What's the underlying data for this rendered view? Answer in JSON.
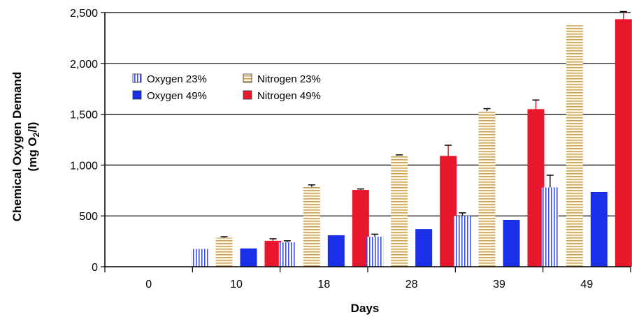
{
  "chart_data": {
    "type": "bar",
    "title": "",
    "xlabel": "Days",
    "ylabel_line1": "Chemical Oxygen Demand",
    "ylabel_line2_prefix": "(mg O",
    "ylabel_line2_sub": "2",
    "ylabel_line2_suffix": "/l)",
    "categories": [
      "0",
      "10",
      "18",
      "28",
      "39",
      "49"
    ],
    "ylim": [
      0,
      2500
    ],
    "yticks": [
      0,
      500,
      1000,
      1500,
      2000,
      2500
    ],
    "ytick_labels": [
      "0",
      "500",
      "1,000",
      "1,500",
      "2,000",
      "2,500"
    ],
    "grid": true,
    "legend_position": "top-left",
    "series": [
      {
        "name": "Oxygen 23%",
        "values": [
          0,
          175,
          240,
          295,
          500,
          780
        ],
        "errors": [
          0,
          0,
          15,
          25,
          30,
          120
        ],
        "pattern": "vertical-stripes",
        "color": "#3a4fd6",
        "stripe_bg": "#ffffff"
      },
      {
        "name": "Nitrogen 23%",
        "values": [
          0,
          285,
          785,
          1095,
          1530,
          2375
        ],
        "errors": [
          0,
          10,
          20,
          5,
          25,
          0
        ],
        "pattern": "horizontal-stripes",
        "color": "#c9a15a",
        "stripe_bg": "#fff8e6"
      },
      {
        "name": "Oxygen 49%",
        "values": [
          0,
          180,
          310,
          370,
          460,
          735
        ],
        "errors": [
          0,
          0,
          0,
          0,
          0,
          0
        ],
        "pattern": "solid",
        "color": "#1a2fe8"
      },
      {
        "name": "Nitrogen 49%",
        "values": [
          0,
          255,
          755,
          1090,
          1550,
          2435
        ],
        "errors": [
          0,
          20,
          10,
          105,
          90,
          75
        ],
        "pattern": "solid",
        "color": "#e8172b"
      }
    ]
  }
}
